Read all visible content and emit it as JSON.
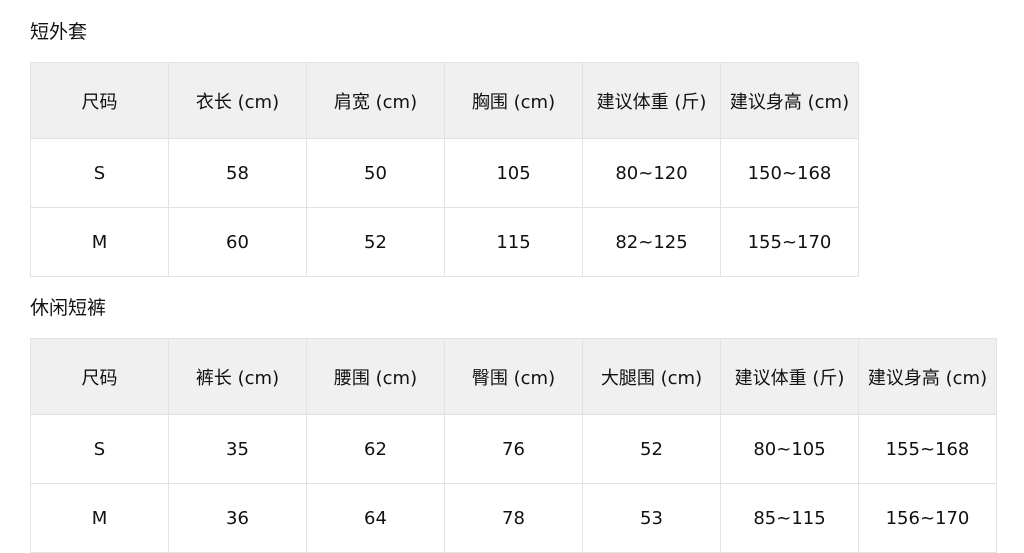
{
  "sections": [
    {
      "title": "短外套",
      "headers": [
        "尺码",
        "衣长 (cm)",
        "肩宽 (cm)",
        "胸围 (cm)",
        "建议体重 (斤)",
        "建议身高 (cm)"
      ],
      "rows": [
        [
          "S",
          "58",
          "50",
          "105",
          "80~120",
          "150~168"
        ],
        [
          "M",
          "60",
          "52",
          "115",
          "82~125",
          "155~170"
        ]
      ]
    },
    {
      "title": "休闲短裤",
      "headers": [
        "尺码",
        "裤长 (cm)",
        "腰围 (cm)",
        "臀围 (cm)",
        "大腿围 (cm)",
        "建议体重 (斤)",
        "建议身高 (cm)"
      ],
      "rows": [
        [
          "S",
          "35",
          "62",
          "76",
          "52",
          "80~105",
          "155~168"
        ],
        [
          "M",
          "36",
          "64",
          "78",
          "53",
          "85~115",
          "156~170"
        ]
      ]
    }
  ]
}
